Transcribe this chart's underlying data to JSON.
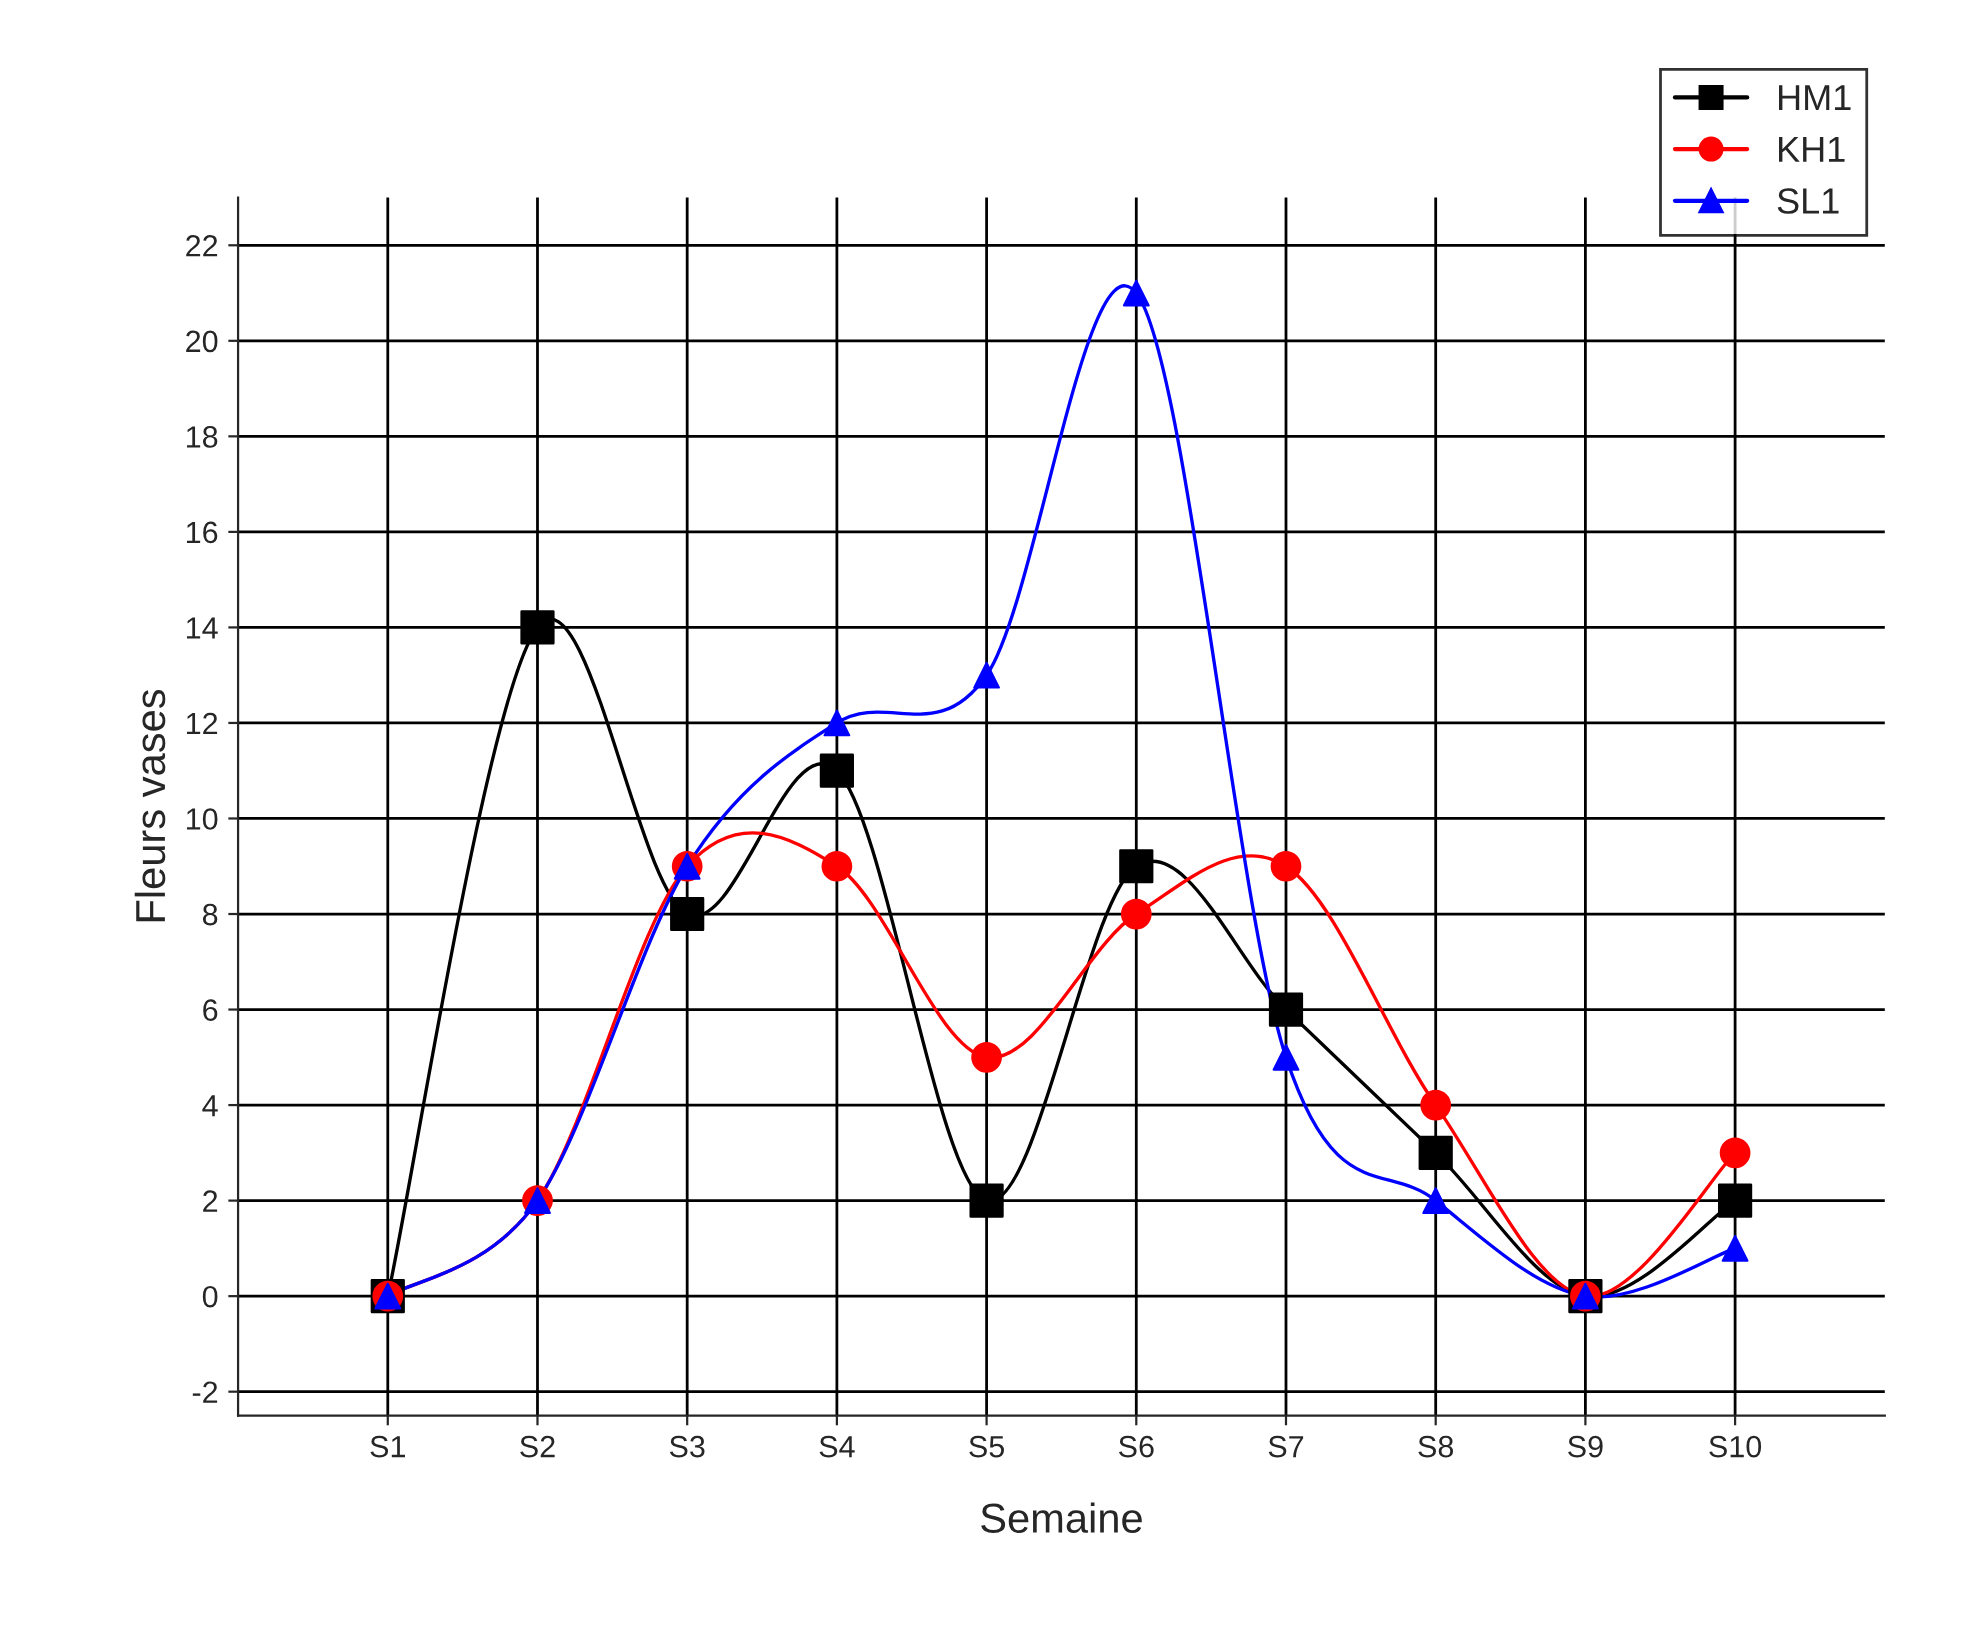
{
  "chart_data": {
    "type": "line",
    "xlabel": "Semaine",
    "ylabel": "Fleurs vases",
    "categories": [
      "S1",
      "S2",
      "S3",
      "S4",
      "S5",
      "S6",
      "S7",
      "S8",
      "S9",
      "S10"
    ],
    "series": [
      {
        "name": "HM1",
        "color": "#000000",
        "marker": "square",
        "values": [
          0,
          14,
          8,
          11,
          2,
          9,
          6,
          3,
          0,
          2
        ]
      },
      {
        "name": "KH1",
        "color": "#ff0000",
        "marker": "circle",
        "values": [
          0,
          2,
          9,
          9,
          5,
          8,
          9,
          4,
          0,
          3
        ]
      },
      {
        "name": "SL1",
        "color": "#0000ff",
        "marker": "triangle",
        "values": [
          0,
          2,
          9,
          12,
          13,
          21,
          5,
          2,
          0,
          1
        ]
      }
    ],
    "ylim": [
      -2.5,
      23
    ],
    "yticks": [
      -2,
      0,
      2,
      4,
      6,
      8,
      10,
      12,
      14,
      16,
      18,
      20,
      22
    ],
    "grid": true,
    "legend": "top right",
    "line_style": "solid"
  }
}
